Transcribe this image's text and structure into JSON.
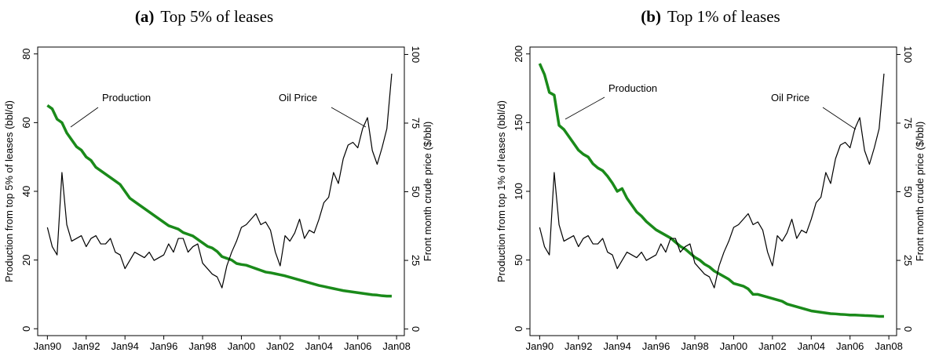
{
  "chart_data": [
    {
      "type": "line",
      "title_label": "(a)",
      "title": "Top 5% of leases",
      "ylabel": "Production from top 5% of leases (bbl/d)",
      "y2label": "Front month crude price ($/bbl)",
      "annotations": [
        "Production",
        "Oil Price"
      ],
      "x": [
        1990,
        1990.25,
        1990.5,
        1990.75,
        1991,
        1991.25,
        1991.5,
        1991.75,
        1992,
        1992.25,
        1992.5,
        1992.75,
        1993,
        1993.25,
        1993.5,
        1993.75,
        1994,
        1994.25,
        1994.5,
        1994.75,
        1995,
        1995.25,
        1995.5,
        1995.75,
        1996,
        1996.25,
        1996.5,
        1996.75,
        1997,
        1997.25,
        1997.5,
        1997.75,
        1998,
        1998.25,
        1998.5,
        1998.75,
        1999,
        1999.25,
        1999.5,
        1999.75,
        2000,
        2000.25,
        2000.5,
        2000.75,
        2001,
        2001.25,
        2001.5,
        2001.75,
        2002,
        2002.25,
        2002.5,
        2002.75,
        2003,
        2003.25,
        2003.5,
        2003.75,
        2004,
        2004.25,
        2004.5,
        2004.75,
        2005,
        2005.25,
        2005.5,
        2005.75,
        2006,
        2006.25,
        2006.5,
        2006.75,
        2007,
        2007.25,
        2007.5,
        2007.75
      ],
      "series": [
        {
          "name": "Production",
          "color": "#1a8a1a",
          "values": [
            65,
            64,
            61,
            60,
            57,
            55,
            53,
            52,
            50,
            49,
            47,
            46,
            45,
            44,
            43,
            42,
            40,
            38,
            37,
            36,
            35,
            34,
            33,
            32,
            31,
            30,
            29.5,
            29,
            28,
            27.5,
            27,
            26,
            25,
            24,
            23.5,
            22.5,
            21,
            20.5,
            20,
            19,
            18.7,
            18.5,
            18,
            17.5,
            17,
            16.5,
            16.3,
            16,
            15.7,
            15.4,
            15,
            14.6,
            14.2,
            13.8,
            13.4,
            13,
            12.6,
            12.3,
            12,
            11.7,
            11.4,
            11.1,
            10.9,
            10.7,
            10.5,
            10.3,
            10.1,
            9.9,
            9.8,
            9.6,
            9.5,
            9.5
          ]
        },
        {
          "name": "Oil Price",
          "color": "#000000",
          "axis": "y2",
          "values": [
            37,
            30,
            27,
            57,
            38,
            32,
            33,
            34,
            30,
            33,
            34,
            31,
            31,
            33,
            28,
            27,
            22,
            25,
            28,
            27,
            26,
            28,
            25,
            26,
            27,
            31,
            28,
            33,
            33,
            28,
            30,
            31,
            24,
            22,
            20,
            19,
            15,
            23,
            28,
            32,
            37,
            38,
            40,
            42,
            38,
            39,
            36,
            28,
            23,
            34,
            32,
            35,
            40,
            33,
            36,
            35,
            40,
            46,
            48,
            57,
            53,
            62,
            67,
            68,
            66,
            73,
            77,
            65,
            60,
            66,
            73,
            93
          ]
        }
      ],
      "xlim": [
        1989.5,
        2008.4
      ],
      "xticks": [
        {
          "value": 1990,
          "label": "Jan90"
        },
        {
          "value": 1992,
          "label": "Jan92"
        },
        {
          "value": 1994,
          "label": "Jan94"
        },
        {
          "value": 1996,
          "label": "Jan96"
        },
        {
          "value": 1998,
          "label": "Jan98"
        },
        {
          "value": 2000,
          "label": "Jan00"
        },
        {
          "value": 2002,
          "label": "Jan02"
        },
        {
          "value": 2004,
          "label": "Jan04"
        },
        {
          "value": 2006,
          "label": "Jan06"
        },
        {
          "value": 2008,
          "label": "Jan08"
        }
      ],
      "ylim": [
        -2,
        82
      ],
      "yticks": [
        0,
        20,
        40,
        60,
        80
      ],
      "y2lim": [
        -2.4,
        102.7
      ],
      "y2ticks": [
        0,
        25,
        50,
        75,
        100
      ]
    },
    {
      "type": "line",
      "title_label": "(b)",
      "title": "Top 1% of leases",
      "ylabel": "Production from top 1% of leases (bbl/d)",
      "y2label": "Front month crude price ($/bbl)",
      "annotations": [
        "Production",
        "Oil Price"
      ],
      "x": [
        1990,
        1990.25,
        1990.5,
        1990.75,
        1991,
        1991.25,
        1991.5,
        1991.75,
        1992,
        1992.25,
        1992.5,
        1992.75,
        1993,
        1993.25,
        1993.5,
        1993.75,
        1994,
        1994.25,
        1994.5,
        1994.75,
        1995,
        1995.25,
        1995.5,
        1995.75,
        1996,
        1996.25,
        1996.5,
        1996.75,
        1997,
        1997.25,
        1997.5,
        1997.75,
        1998,
        1998.25,
        1998.5,
        1998.75,
        1999,
        1999.25,
        1999.5,
        1999.75,
        2000,
        2000.25,
        2000.5,
        2000.75,
        2001,
        2001.25,
        2001.5,
        2001.75,
        2002,
        2002.25,
        2002.5,
        2002.75,
        2003,
        2003.25,
        2003.5,
        2003.75,
        2004,
        2004.25,
        2004.5,
        2004.75,
        2005,
        2005.25,
        2005.5,
        2005.75,
        2006,
        2006.25,
        2006.5,
        2006.75,
        2007,
        2007.25,
        2007.5,
        2007.75
      ],
      "series": [
        {
          "name": "Production",
          "color": "#1a8a1a",
          "values": [
            193,
            185,
            172,
            170,
            148,
            145,
            140,
            135,
            130,
            127,
            125,
            120,
            117,
            115,
            111,
            106,
            100,
            102,
            95,
            90,
            85,
            82,
            78,
            75,
            72,
            70,
            68,
            66,
            63,
            60,
            58,
            55,
            52,
            50,
            47,
            45,
            42,
            40,
            38,
            36,
            33,
            32,
            31,
            29,
            25,
            25,
            24,
            23,
            22,
            21,
            20,
            18,
            17,
            16,
            15,
            14,
            13,
            12.5,
            12,
            11.5,
            11,
            10.8,
            10.5,
            10.3,
            10,
            10,
            9.8,
            9.6,
            9.5,
            9.3,
            9,
            9
          ]
        },
        {
          "name": "Oil Price",
          "color": "#000000",
          "axis": "y2",
          "values": [
            37,
            30,
            27,
            57,
            38,
            32,
            33,
            34,
            30,
            33,
            34,
            31,
            31,
            33,
            28,
            27,
            22,
            25,
            28,
            27,
            26,
            28,
            25,
            26,
            27,
            31,
            28,
            33,
            33,
            28,
            30,
            31,
            24,
            22,
            20,
            19,
            15,
            23,
            28,
            32,
            37,
            38,
            40,
            42,
            38,
            39,
            36,
            28,
            23,
            34,
            32,
            35,
            40,
            33,
            36,
            35,
            40,
            46,
            48,
            57,
            53,
            62,
            67,
            68,
            66,
            73,
            77,
            65,
            60,
            66,
            73,
            93
          ]
        }
      ],
      "xlim": [
        1989.5,
        2008.4
      ],
      "xticks": [
        {
          "value": 1990,
          "label": "Jan90"
        },
        {
          "value": 1992,
          "label": "Jan92"
        },
        {
          "value": 1994,
          "label": "Jan94"
        },
        {
          "value": 1996,
          "label": "Jan96"
        },
        {
          "value": 1998,
          "label": "Jan98"
        },
        {
          "value": 2000,
          "label": "Jan00"
        },
        {
          "value": 2002,
          "label": "Jan02"
        },
        {
          "value": 2004,
          "label": "Jan04"
        },
        {
          "value": 2006,
          "label": "Jan06"
        },
        {
          "value": 2008,
          "label": "Jan08"
        }
      ],
      "ylim": [
        -5,
        205
      ],
      "yticks": [
        0,
        50,
        100,
        150,
        200
      ],
      "y2lim": [
        -2.4,
        102.7
      ],
      "y2ticks": [
        0,
        25,
        50,
        75,
        100
      ]
    }
  ]
}
